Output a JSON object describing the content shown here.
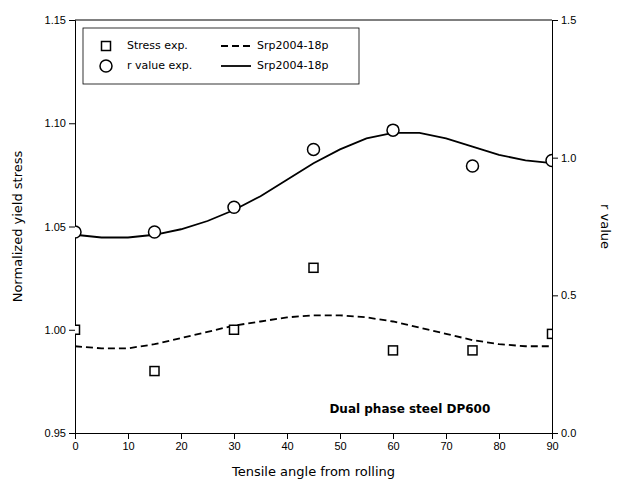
{
  "chart_data": {
    "type": "line",
    "xlabel": "Tensile angle from rolling",
    "ylabel": "Normalized yield stress",
    "y2label": "r value",
    "xlim": [
      0,
      90
    ],
    "xticks": [
      0,
      10,
      20,
      30,
      40,
      50,
      60,
      70,
      80,
      90
    ],
    "ylim": [
      0.95,
      1.15
    ],
    "yticks": [
      0.95,
      {
        "value": 1.0,
        "label": "1.00"
      },
      1.05,
      {
        "value": 1.1,
        "label": "1.10"
      },
      1.15
    ],
    "y2lim": [
      0.0,
      1.5
    ],
    "y2ticks": [
      {
        "value": 0.0,
        "label": "0.0"
      },
      0.5,
      {
        "value": 1.0,
        "label": "1.0"
      },
      1.5
    ],
    "grid": false,
    "legend": "upper left",
    "annotations": [
      {
        "text": "Dual phase steel DP600",
        "x": 48,
        "y": 0.958
      }
    ],
    "series": [
      {
        "name": "Stress exp.",
        "type": "scatter",
        "marker": "square",
        "color": "#000000",
        "axis": "y",
        "x": [
          0,
          15,
          30,
          45,
          60,
          75,
          90
        ],
        "values": [
          1.0,
          0.98,
          1.0,
          1.03,
          0.99,
          0.99,
          0.998
        ]
      },
      {
        "name": "r value exp.",
        "type": "scatter",
        "marker": "circle",
        "color": "#000000",
        "axis": "y2",
        "x": [
          0,
          15,
          30,
          45,
          60,
          75,
          90
        ],
        "values": [
          0.73,
          0.73,
          0.82,
          1.03,
          1.1,
          0.97,
          0.99
        ]
      },
      {
        "name": "Srp2004-18p",
        "type": "line",
        "line_style": "dashed",
        "color": "#000000",
        "axis": "y",
        "x": [
          0,
          5,
          10,
          15,
          20,
          25,
          30,
          35,
          40,
          45,
          50,
          55,
          60,
          65,
          70,
          75,
          80,
          85,
          90
        ],
        "values": [
          0.992,
          0.991,
          0.991,
          0.993,
          0.996,
          0.999,
          1.002,
          1.004,
          1.006,
          1.007,
          1.007,
          1.006,
          1.004,
          1.001,
          0.998,
          0.995,
          0.993,
          0.992,
          0.992
        ]
      },
      {
        "name": "Srp2004-18p",
        "type": "line",
        "line_style": "solid",
        "color": "#000000",
        "axis": "y2",
        "x": [
          0,
          5,
          10,
          15,
          20,
          25,
          30,
          35,
          40,
          45,
          50,
          55,
          60,
          65,
          70,
          75,
          80,
          85,
          90
        ],
        "values": [
          0.72,
          0.71,
          0.71,
          0.72,
          0.74,
          0.77,
          0.81,
          0.86,
          0.92,
          0.98,
          1.03,
          1.07,
          1.09,
          1.09,
          1.07,
          1.04,
          1.01,
          0.99,
          0.98
        ]
      }
    ]
  }
}
